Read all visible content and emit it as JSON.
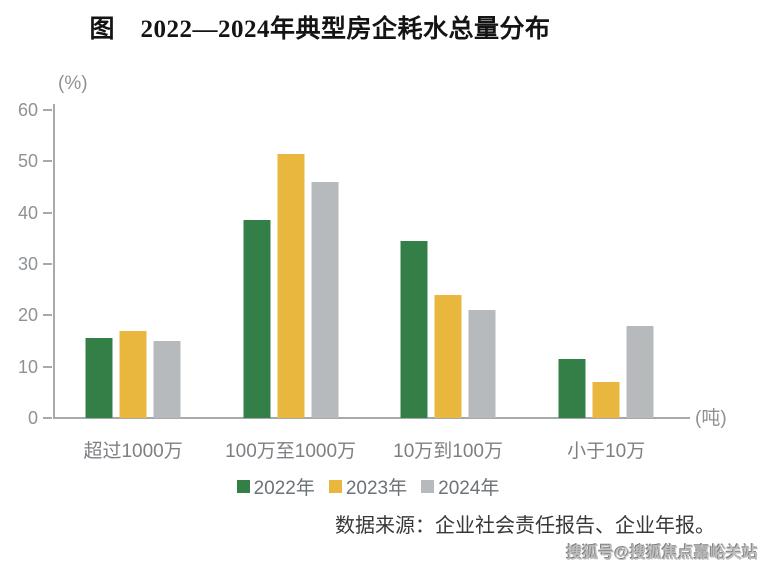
{
  "title": "图　2022—2024年典型房企耗水总量分布",
  "chart_data": {
    "type": "bar",
    "title": "图　2022—2024年典型房企耗水总量分布",
    "categories": [
      "超过1000万",
      "100万至1000万",
      "10万到100万",
      "小于10万"
    ],
    "series": [
      {
        "name": "2022年",
        "color": "#347f48",
        "values": [
          15.5,
          38.5,
          34.5,
          11.5
        ]
      },
      {
        "name": "2023年",
        "color": "#eab73e",
        "values": [
          17,
          51.5,
          24,
          7
        ]
      },
      {
        "name": "2024年",
        "color": "#b7babc",
        "values": [
          15,
          46,
          21,
          18
        ]
      }
    ],
    "ylabel": "(%)",
    "xlabel": "(吨)",
    "ylim": [
      0,
      60
    ],
    "yticks": [
      0,
      10,
      20,
      30,
      40,
      50,
      60
    ],
    "grid": false,
    "legend_position": "bottom"
  },
  "source": "数据来源：企业社会责任报告、企业年报。",
  "watermark": "搜狐号@搜狐焦点嘉峪关站",
  "colors": {
    "axis": "#a6aaac",
    "tick_label": "#8e9295",
    "category_label": "#7c8084",
    "legend_label": "#6d7276"
  }
}
